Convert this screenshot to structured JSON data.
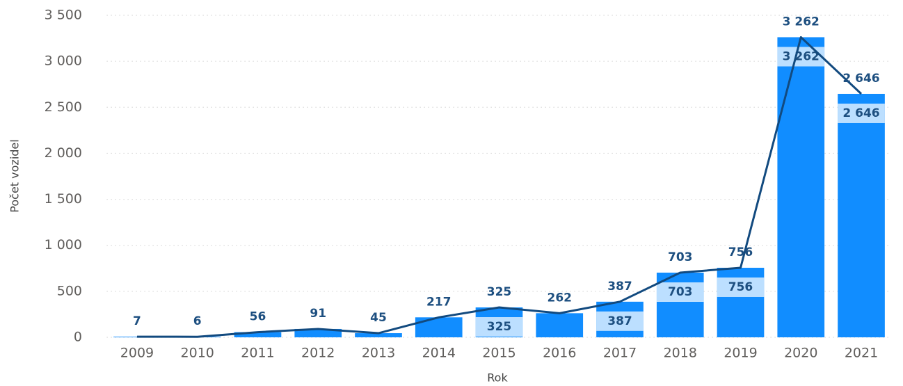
{
  "chart_data": {
    "type": "combo",
    "x_label": "Rok",
    "y_label": "Počet vozidel",
    "categories": [
      "2009",
      "2010",
      "2011",
      "2012",
      "2013",
      "2014",
      "2015",
      "2016",
      "2017",
      "2018",
      "2019",
      "2020",
      "2021"
    ],
    "values": [
      7,
      6,
      56,
      91,
      45,
      217,
      325,
      262,
      387,
      703,
      756,
      3262,
      2646
    ],
    "value_labels": [
      "7",
      "6",
      "56",
      "91",
      "45",
      "217",
      "325",
      "262",
      "387",
      "703",
      "756",
      "3 262",
      "2 646"
    ],
    "bar_color": "#118dff",
    "line_color": "#124a7f",
    "ylim": [
      0,
      3500
    ],
    "yticks": [
      0,
      500,
      {
        "value": 1000,
        "label": "1 000"
      },
      {
        "value": 1500,
        "label": "1 500"
      },
      {
        "value": 2000,
        "label": "2 000"
      },
      {
        "value": 2500,
        "label": "2 500"
      },
      {
        "value": 3000,
        "label": "3 000"
      },
      {
        "value": 3500,
        "label": "3 500"
      }
    ],
    "grid": true
  }
}
